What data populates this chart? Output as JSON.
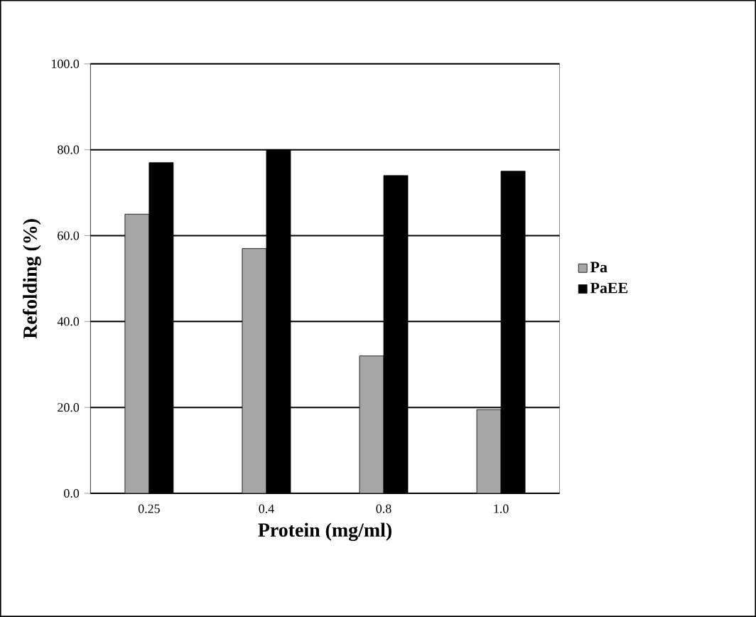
{
  "chart_data": {
    "type": "bar",
    "xlabel": "Protein (mg/ml)",
    "ylabel": "Refolding (%)",
    "categories": [
      "0.25",
      "0.4",
      "0.8",
      "1.0"
    ],
    "series": [
      {
        "name": "Pa",
        "color": "#a6a6a6",
        "values": [
          65,
          57,
          32,
          19.5
        ]
      },
      {
        "name": "PaEE",
        "color": "#000000",
        "values": [
          77,
          80,
          74,
          75
        ]
      }
    ],
    "ylim": [
      0,
      100
    ],
    "yticks": [
      {
        "value": 0,
        "label": "0.0"
      },
      {
        "value": 20,
        "label": "20.0"
      },
      {
        "value": 40,
        "label": "40.0"
      },
      {
        "value": 60,
        "label": "60.0"
      },
      {
        "value": 80,
        "label": "80.0"
      },
      {
        "value": 100,
        "label": "100.0"
      }
    ],
    "grid": "y",
    "legend": "right"
  }
}
